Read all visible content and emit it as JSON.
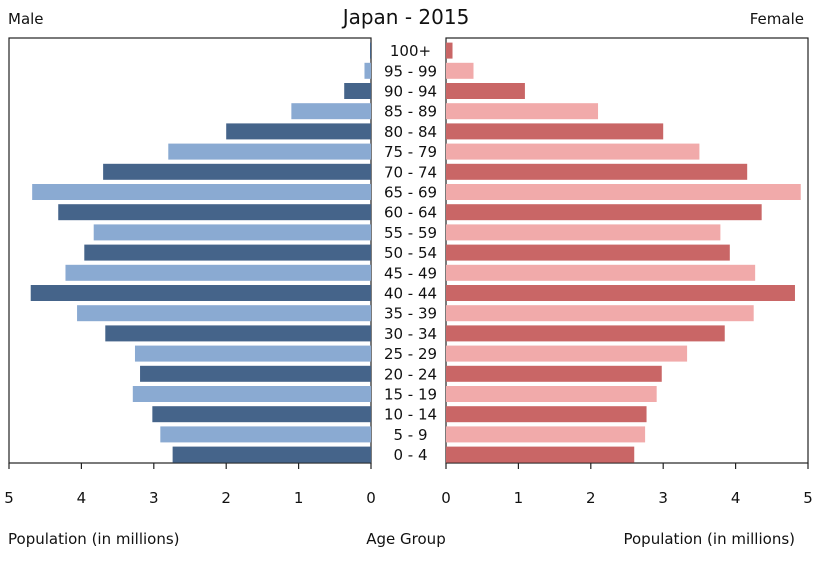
{
  "chart_data": {
    "type": "bar",
    "title": "Japan - 2015",
    "left_label": "Male",
    "right_label": "Female",
    "xlabel_left": "Population (in millions)",
    "xlabel_center": "Age Group",
    "xlabel_right": "Population (in millions)",
    "xlim": [
      0,
      5
    ],
    "x_ticks_left": [
      "5",
      "4",
      "3",
      "2",
      "1",
      "0"
    ],
    "x_ticks_right": [
      "0",
      "1",
      "2",
      "3",
      "4",
      "5"
    ],
    "grid": false,
    "categories": [
      "100+",
      "95 - 99",
      "90 - 94",
      "85 - 89",
      "80 - 84",
      "75 - 79",
      "70 - 74",
      "65 - 69",
      "60 - 64",
      "55 - 59",
      "50 - 54",
      "45 - 49",
      "40 - 44",
      "35 - 39",
      "30 - 34",
      "25 - 29",
      "20 - 24",
      "15 - 19",
      "10 - 14",
      "5 - 9",
      "0 - 4"
    ],
    "series": [
      {
        "name": "Male",
        "values": [
          0.01,
          0.09,
          0.37,
          1.1,
          2.0,
          2.8,
          3.7,
          4.68,
          4.32,
          3.83,
          3.96,
          4.22,
          4.7,
          4.06,
          3.67,
          3.26,
          3.19,
          3.29,
          3.02,
          2.91,
          2.74
        ],
        "colors": [
          "#45648a",
          "#8aaad2"
        ]
      },
      {
        "name": "Female",
        "values": [
          0.09,
          0.38,
          1.09,
          2.1,
          3.0,
          3.5,
          4.16,
          4.9,
          4.36,
          3.79,
          3.92,
          4.27,
          4.82,
          4.25,
          3.85,
          3.33,
          2.98,
          2.91,
          2.77,
          2.75,
          2.6
        ],
        "colors": [
          "#c96666",
          "#f1aaaa"
        ]
      }
    ]
  }
}
